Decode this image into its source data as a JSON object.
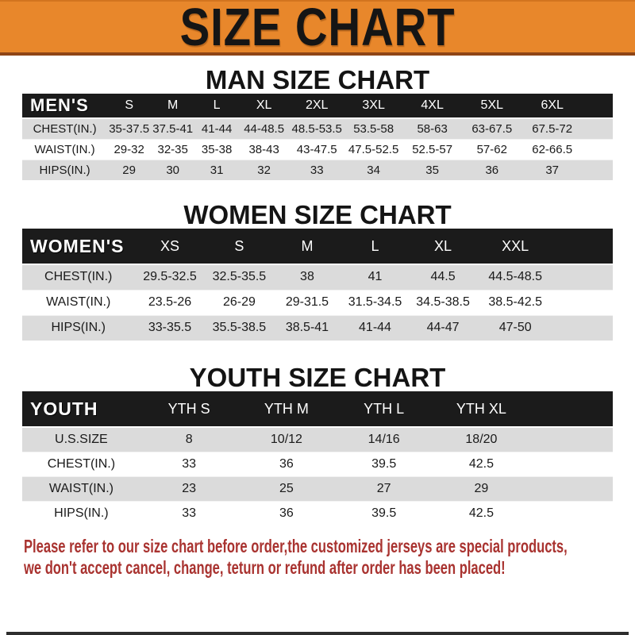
{
  "banner": {
    "title": "SIZE CHART"
  },
  "sections": {
    "men": {
      "heading": "MAN SIZE CHART",
      "corner": "MEN'S",
      "columns": [
        "S",
        "M",
        "L",
        "XL",
        "2XL",
        "3XL",
        "4XL",
        "5XL",
        "6XL"
      ],
      "rows": [
        {
          "label": "CHEST(IN.)",
          "values": [
            "35-37.5",
            "37.5-41",
            "41-44",
            "44-48.5",
            "48.5-53.5",
            "53.5-58",
            "58-63",
            "63-67.5",
            "67.5-72"
          ]
        },
        {
          "label": "WAIST(IN.)",
          "values": [
            "29-32",
            "32-35",
            "35-38",
            "38-43",
            "43-47.5",
            "47.5-52.5",
            "52.5-57",
            "57-62",
            "62-66.5"
          ]
        },
        {
          "label": "HIPS(IN.)",
          "values": [
            "29",
            "30",
            "31",
            "32",
            "33",
            "34",
            "35",
            "36",
            "37"
          ]
        }
      ]
    },
    "women": {
      "heading": "WOMEN SIZE CHART",
      "corner": "WOMEN'S",
      "columns": [
        "XS",
        "S",
        "M",
        "L",
        "XL",
        "XXL"
      ],
      "rows": [
        {
          "label": "CHEST(IN.)",
          "values": [
            "29.5-32.5",
            "32.5-35.5",
            "38",
            "41",
            "44.5",
            "44.5-48.5"
          ]
        },
        {
          "label": "WAIST(IN.)",
          "values": [
            "23.5-26",
            "26-29",
            "29-31.5",
            "31.5-34.5",
            "34.5-38.5",
            "38.5-42.5"
          ]
        },
        {
          "label": "HIPS(IN.)",
          "values": [
            "33-35.5",
            "35.5-38.5",
            "38.5-41",
            "41-44",
            "44-47",
            "47-50"
          ]
        }
      ]
    },
    "youth": {
      "heading": "YOUTH SIZE CHART",
      "corner": "YOUTH",
      "columns": [
        "YTH S",
        "YTH M",
        "YTH L",
        "YTH XL"
      ],
      "rows": [
        {
          "label": "U.S.SIZE",
          "values": [
            "8",
            "10/12",
            "14/16",
            "18/20"
          ]
        },
        {
          "label": "CHEST(IN.)",
          "values": [
            "33",
            "36",
            "39.5",
            "42.5"
          ]
        },
        {
          "label": "WAIST(IN.)",
          "values": [
            "23",
            "25",
            "27",
            "29"
          ]
        },
        {
          "label": "HIPS(IN.)",
          "values": [
            "33",
            "36",
            "39.5",
            "42.5"
          ]
        }
      ]
    }
  },
  "footer": {
    "line1": "Please refer to our size chart before order,the customized jerseys are special products,",
    "line2": "we don't accept cancel, change, teturn or refund after order has been placed!"
  },
  "colors": {
    "banner_bg": "#E8872B",
    "banner_border_bottom": "#8F4516",
    "header_bar_bg": "#1B1B1B",
    "row_alt_bg": "#DBDBDB",
    "footer_text": "#A93330"
  }
}
